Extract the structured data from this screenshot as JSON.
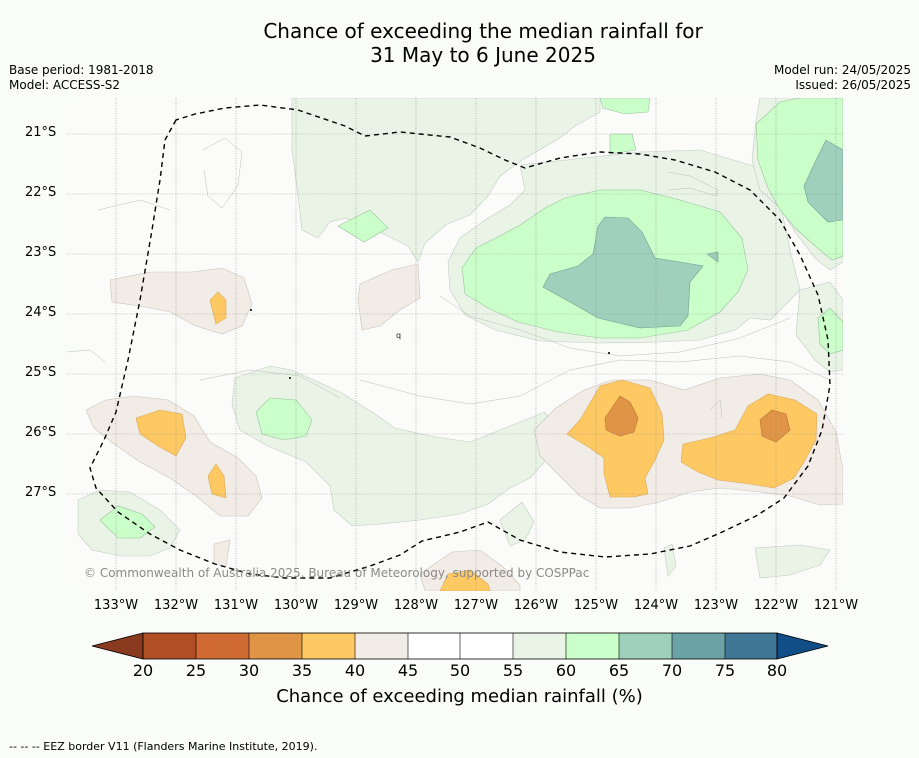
{
  "title": {
    "line1": "Chance of exceeding the median rainfall for",
    "line2": "31 May to 6 June 2025"
  },
  "meta_left": {
    "base_period": "Base period: 1981-2018",
    "model": "Model: ACCESS-S2"
  },
  "meta_right": {
    "model_run": "Model run: 24/05/2025",
    "issued": "Issued: 26/05/2025"
  },
  "lat_labels": [
    "21°S",
    "22°S",
    "23°S",
    "24°S",
    "25°S",
    "26°S",
    "27°S"
  ],
  "lon_labels": [
    "133°W",
    "132°W",
    "131°W",
    "130°W",
    "129°W",
    "128°W",
    "127°W",
    "126°W",
    "125°W",
    "124°W",
    "123°W",
    "122°W",
    "121°W"
  ],
  "copyright": "© Commonwealth of Australia 2025, Bureau of Meteorology, supported by COSPPac",
  "colorbar": {
    "ticks": [
      "20",
      "25",
      "30",
      "35",
      "40",
      "45",
      "50",
      "55",
      "60",
      "65",
      "70",
      "75",
      "80"
    ],
    "colors": {
      "below_20": "#8a3a1e",
      "c20_25": "#b04e26",
      "c25_30": "#cf6a33",
      "c30_35": "#e09445",
      "c35_40": "#fec962",
      "c40_45": "#f2ece6",
      "c45_50": "#ffffff",
      "c50_55": "#ffffff",
      "c55_60": "#e9f4e6",
      "c60_65": "#caffc9",
      "c65_70": "#9ed0bb",
      "c70_75": "#6aa2a5",
      "c75_80": "#3f7795",
      "above_80": "#114d86"
    },
    "label": "Chance of exceeding median rainfall (%)"
  },
  "footnote": "-- -- -- EEZ border V11 (Flanders Marine Institute, 2019)."
}
